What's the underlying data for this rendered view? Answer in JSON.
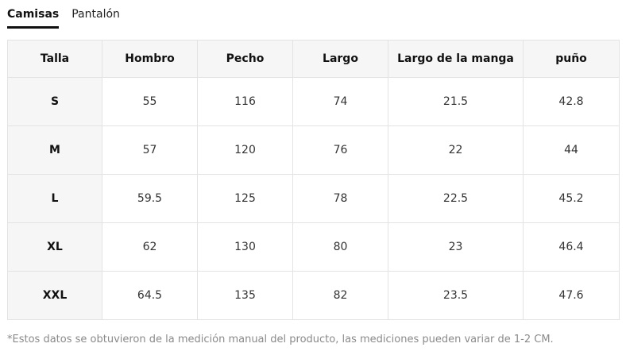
{
  "tabs": [
    {
      "label": "Camisas",
      "active": true
    },
    {
      "label": "Pantalón",
      "active": false
    }
  ],
  "table": {
    "headers": [
      "Talla",
      "Hombro",
      "Pecho",
      "Largo",
      "Largo de la manga",
      "puño"
    ],
    "rows": [
      [
        "S",
        "55",
        "116",
        "74",
        "21.5",
        "42.8"
      ],
      [
        "M",
        "57",
        "120",
        "76",
        "22",
        "44"
      ],
      [
        "L",
        "59.5",
        "125",
        "78",
        "22.5",
        "45.2"
      ],
      [
        "XL",
        "62",
        "130",
        "80",
        "23",
        "46.4"
      ],
      [
        "XXL",
        "64.5",
        "135",
        "82",
        "23.5",
        "47.6"
      ]
    ]
  },
  "note": "*Estos datos se obtuvieron de la medición manual del producto, las mediciones pueden variar de 1-2 CM."
}
